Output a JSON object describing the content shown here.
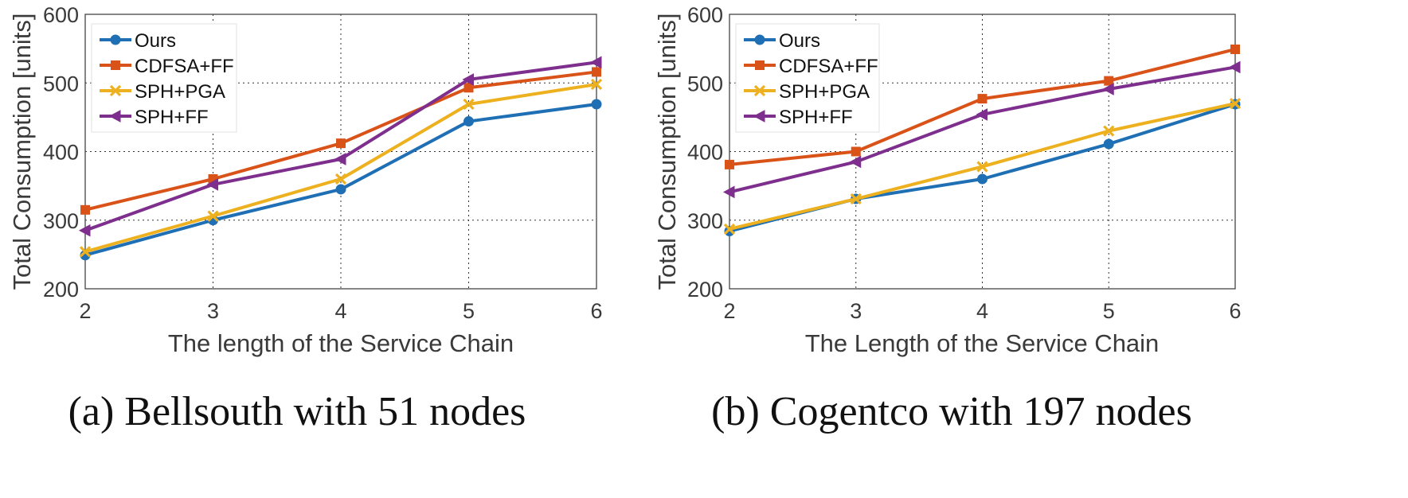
{
  "colors": {
    "ours": "#1f6fb5",
    "cdfsa_ff": "#d95319",
    "sph_pga": "#edb120",
    "sph_ff": "#7e2f8e"
  },
  "chart_data": [
    {
      "type": "line",
      "caption": "(a) Bellsouth with 51 nodes",
      "xlabel": "The length of the Service Chain",
      "ylabel": "Total Consumption [units]",
      "x": [
        2,
        3,
        4,
        5,
        6
      ],
      "xlim": [
        2,
        6
      ],
      "ylim": [
        200,
        600
      ],
      "yticks": [
        200,
        300,
        400,
        500,
        600
      ],
      "grid": true,
      "legend_position": "top-left",
      "series": [
        {
          "name": "Ours",
          "marker": "circle",
          "color_key": "ours",
          "values": [
            249,
            300,
            345,
            444,
            469
          ]
        },
        {
          "name": "CDFSA+FF",
          "marker": "square",
          "color_key": "cdfsa_ff",
          "values": [
            315,
            360,
            412,
            493,
            516
          ]
        },
        {
          "name": "SPH+PGA",
          "marker": "x",
          "color_key": "sph_pga",
          "values": [
            254,
            306,
            360,
            469,
            498
          ]
        },
        {
          "name": "SPH+FF",
          "marker": "triangle-left",
          "color_key": "sph_ff",
          "values": [
            285,
            352,
            389,
            505,
            530
          ]
        }
      ]
    },
    {
      "type": "line",
      "caption": "(b) Cogentco with 197 nodes",
      "xlabel": "The Length of the Service Chain",
      "ylabel": "Total Consumption [units]",
      "x": [
        2,
        3,
        4,
        5,
        6
      ],
      "xlim": [
        2,
        6
      ],
      "ylim": [
        200,
        600
      ],
      "yticks": [
        200,
        300,
        400,
        500,
        600
      ],
      "grid": true,
      "legend_position": "top-left",
      "series": [
        {
          "name": "Ours",
          "marker": "circle",
          "color_key": "ours",
          "values": [
            284,
            331,
            360,
            411,
            469
          ]
        },
        {
          "name": "CDFSA+FF",
          "marker": "square",
          "color_key": "cdfsa_ff",
          "values": [
            381,
            400,
            477,
            503,
            549
          ]
        },
        {
          "name": "SPH+PGA",
          "marker": "x",
          "color_key": "sph_pga",
          "values": [
            287,
            331,
            378,
            430,
            470
          ]
        },
        {
          "name": "SPH+FF",
          "marker": "triangle-left",
          "color_key": "sph_ff",
          "values": [
            341,
            385,
            454,
            491,
            523
          ]
        }
      ]
    }
  ]
}
